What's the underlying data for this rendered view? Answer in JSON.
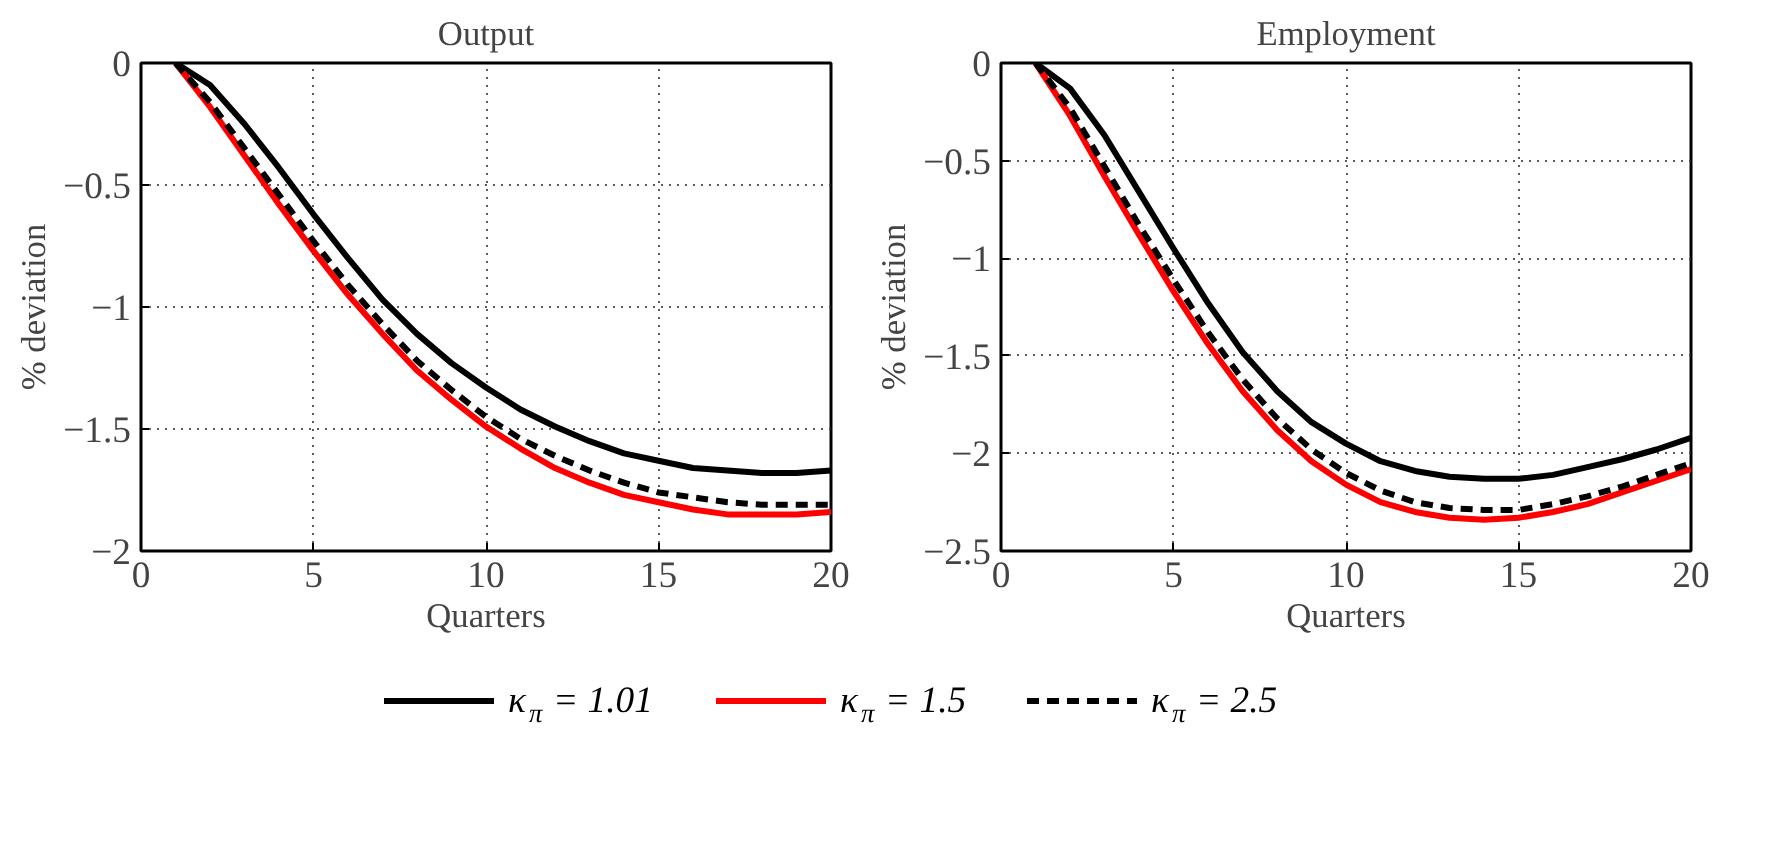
{
  "chart_data": [
    {
      "type": "line",
      "title": "Output",
      "xlabel": "Quarters",
      "ylabel": "% deviation",
      "x": [
        1,
        2,
        3,
        4,
        5,
        6,
        7,
        8,
        9,
        10,
        11,
        12,
        13,
        14,
        15,
        16,
        17,
        18,
        19,
        20
      ],
      "xlim": [
        0,
        20
      ],
      "ylim": [
        -2,
        0
      ],
      "xticks": [
        0,
        5,
        10,
        15,
        20
      ],
      "yticks": [
        {
          "value": -2,
          "label": "−2"
        },
        {
          "value": -1.5,
          "label": "−1.5"
        },
        {
          "value": -1,
          "label": "−1"
        },
        {
          "value": -0.5,
          "label": "−0.5"
        },
        0
      ],
      "grid": true,
      "legend": "bottom",
      "series": [
        {
          "name": "κ$_{π}$ = 1.01",
          "color": "#000000",
          "line_style": "solid",
          "values": [
            0,
            -0.09,
            -0.25,
            -0.43,
            -0.62,
            -0.8,
            -0.97,
            -1.11,
            -1.23,
            -1.33,
            -1.42,
            -1.49,
            -1.55,
            -1.6,
            -1.63,
            -1.66,
            -1.67,
            -1.68,
            -1.68,
            -1.67
          ]
        },
        {
          "name": "κ$_{π}$ = 1.5",
          "color": "#ff0000",
          "line_style": "solid",
          "values": [
            0,
            -0.18,
            -0.38,
            -0.58,
            -0.77,
            -0.95,
            -1.11,
            -1.26,
            -1.38,
            -1.49,
            -1.58,
            -1.66,
            -1.72,
            -1.77,
            -1.8,
            -1.83,
            -1.85,
            -1.85,
            -1.85,
            -1.84
          ]
        },
        {
          "name": "κ$_{π}$ = 2.5",
          "color": "#000000",
          "line_style": "dashed",
          "values": [
            0,
            -0.16,
            -0.35,
            -0.54,
            -0.73,
            -0.91,
            -1.07,
            -1.22,
            -1.34,
            -1.45,
            -1.54,
            -1.61,
            -1.67,
            -1.72,
            -1.76,
            -1.78,
            -1.8,
            -1.81,
            -1.81,
            -1.81
          ]
        }
      ]
    },
    {
      "type": "line",
      "title": "Employment",
      "xlabel": "Quarters",
      "ylabel": "% deviation",
      "x": [
        1,
        2,
        3,
        4,
        5,
        6,
        7,
        8,
        9,
        10,
        11,
        12,
        13,
        14,
        15,
        16,
        17,
        18,
        19,
        20
      ],
      "xlim": [
        0,
        20
      ],
      "ylim": [
        -2.5,
        0
      ],
      "xticks": [
        0,
        5,
        10,
        15,
        20
      ],
      "yticks": [
        {
          "value": -2.5,
          "label": "−2.5"
        },
        {
          "value": -2,
          "label": "−2"
        },
        {
          "value": -1.5,
          "label": "−1.5"
        },
        {
          "value": -1,
          "label": "−1"
        },
        {
          "value": -0.5,
          "label": "−0.5"
        },
        0
      ],
      "grid": true,
      "legend": "bottom",
      "series": [
        {
          "name": "κ$_{π}$ = 1.01",
          "color": "#000000",
          "line_style": "solid",
          "values": [
            0,
            -0.13,
            -0.37,
            -0.66,
            -0.95,
            -1.23,
            -1.48,
            -1.68,
            -1.84,
            -1.95,
            -2.04,
            -2.09,
            -2.12,
            -2.13,
            -2.13,
            -2.11,
            -2.07,
            -2.03,
            -1.98,
            -1.92
          ]
        },
        {
          "name": "κ$_{π}$ = 1.5",
          "color": "#ff0000",
          "line_style": "solid",
          "values": [
            0,
            -0.27,
            -0.58,
            -0.88,
            -1.17,
            -1.44,
            -1.68,
            -1.88,
            -2.04,
            -2.16,
            -2.25,
            -2.3,
            -2.33,
            -2.34,
            -2.33,
            -2.3,
            -2.26,
            -2.2,
            -2.14,
            -2.08
          ]
        },
        {
          "name": "κ$_{π}$ = 2.5",
          "color": "#000000",
          "line_style": "dashed",
          "values": [
            0,
            -0.23,
            -0.53,
            -0.83,
            -1.11,
            -1.38,
            -1.62,
            -1.82,
            -1.98,
            -2.1,
            -2.19,
            -2.25,
            -2.28,
            -2.29,
            -2.29,
            -2.26,
            -2.22,
            -2.17,
            -2.11,
            -2.05
          ]
        }
      ]
    }
  ]
}
